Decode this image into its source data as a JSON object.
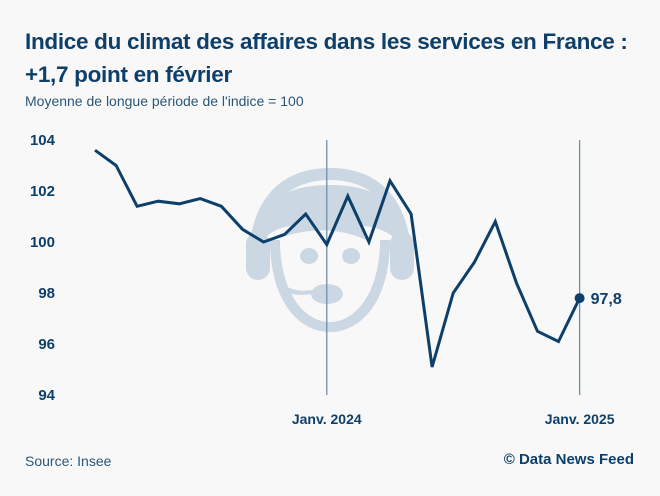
{
  "header": {
    "title": "Indice du climat des affaires dans les services en France : +1,7 point en février",
    "subtitle": "Moyenne de longue période de l'indice = 100"
  },
  "footer": {
    "source": "Source: Insee",
    "credit": "© Data News Feed"
  },
  "colors": {
    "line": "#0d3f6b",
    "text": "#0d3f6b",
    "marker_lines": "#6f8ea8",
    "illustration": "#c9d6e1",
    "background": "#f8f8f8"
  },
  "chart_data": {
    "type": "line",
    "title": "Indice du climat des affaires dans les services en France : +1,7 point en février",
    "subtitle": "Moyenne de longue période de l'indice = 100",
    "xlabel": "",
    "ylabel": "",
    "ylim": [
      94,
      104
    ],
    "yticks": [
      104,
      102,
      100,
      98,
      96,
      94
    ],
    "ytick_labels": [
      "104",
      "102",
      "100",
      "98",
      "96",
      "94"
    ],
    "x": [
      "2023-02",
      "2023-03",
      "2023-04",
      "2023-05",
      "2023-06",
      "2023-07",
      "2023-08",
      "2023-09",
      "2023-10",
      "2023-11",
      "2023-12",
      "2024-01",
      "2024-02",
      "2024-03",
      "2024-04",
      "2024-05",
      "2024-06",
      "2024-07",
      "2024-08",
      "2024-09",
      "2024-10",
      "2024-11",
      "2024-12",
      "2025-01",
      "2025-02"
    ],
    "xtick_labels": [
      {
        "at": "2024-01",
        "label": "Janv. 2024"
      },
      {
        "at": "2025-01",
        "label": "Janv. 2025"
      }
    ],
    "reference_lines": [
      "2024-01",
      "2025-01"
    ],
    "series": [
      {
        "name": "Indice du climat des affaires - services",
        "values": [
          103.6,
          103.0,
          101.4,
          101.6,
          101.5,
          101.7,
          101.4,
          100.5,
          100.0,
          100.3,
          101.1,
          99.9,
          101.8,
          100.0,
          102.4,
          101.1,
          95.1,
          98.0,
          99.2,
          100.8,
          98.4,
          96.5,
          96.1,
          97.8,
          null
        ]
      }
    ],
    "end_label": "97,8",
    "grid": false,
    "legend": "none"
  }
}
